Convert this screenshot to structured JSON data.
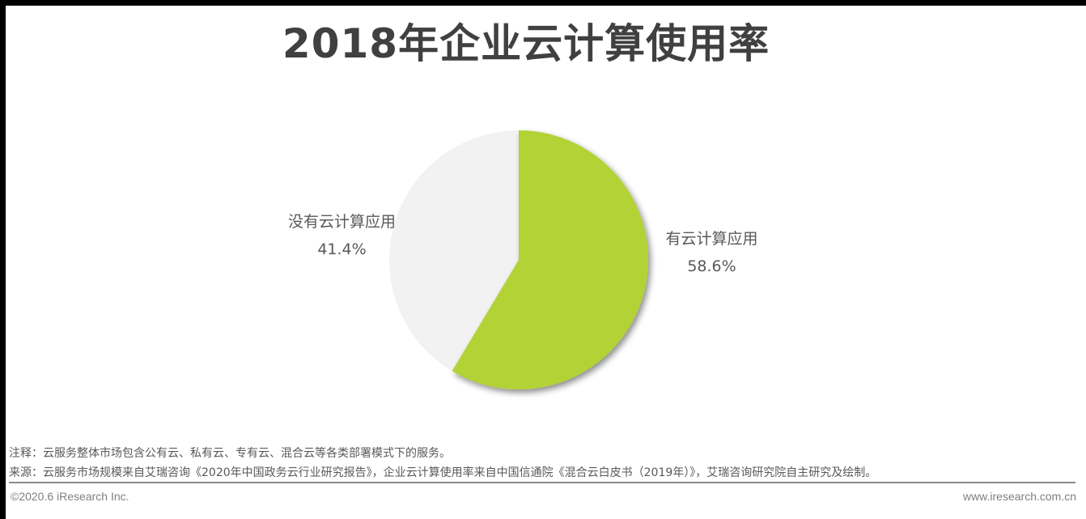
{
  "title": "2018年企业云计算使用率",
  "chart_data": {
    "type": "pie",
    "title": "2018年企业云计算使用率",
    "categories": [
      "有云计算应用",
      "没有云计算应用"
    ],
    "values": [
      58.6,
      41.4
    ],
    "unit": "%",
    "colors": [
      "#b2d235",
      "#f2f2f2"
    ],
    "start_angle": "12 o'clock",
    "direction": "clockwise",
    "labels": [
      {
        "name": "有云计算应用",
        "value": "58.6%"
      },
      {
        "name": "没有云计算应用",
        "value": "41.4%"
      }
    ],
    "legend": "none (data labels outside slices)"
  },
  "labels": {
    "yes": {
      "name": "有云计算应用",
      "value": "58.6%"
    },
    "no": {
      "name": "没有云计算应用",
      "value": "41.4%"
    }
  },
  "notes": {
    "note": "注释：云服务整体市场包含公有云、私有云、专有云、混合云等各类部署模式下的服务。",
    "source": "来源：云服务市场规模来自艾瑞咨询《2020年中国政务云行业研究报告》，企业云计算使用率来自中国信通院《混合云白皮书（2019年）》，艾瑞咨询研究院自主研究及绘制。"
  },
  "footer": {
    "copyright": "©2020.6 iResearch Inc.",
    "website": "www.iresearch.com.cn"
  }
}
